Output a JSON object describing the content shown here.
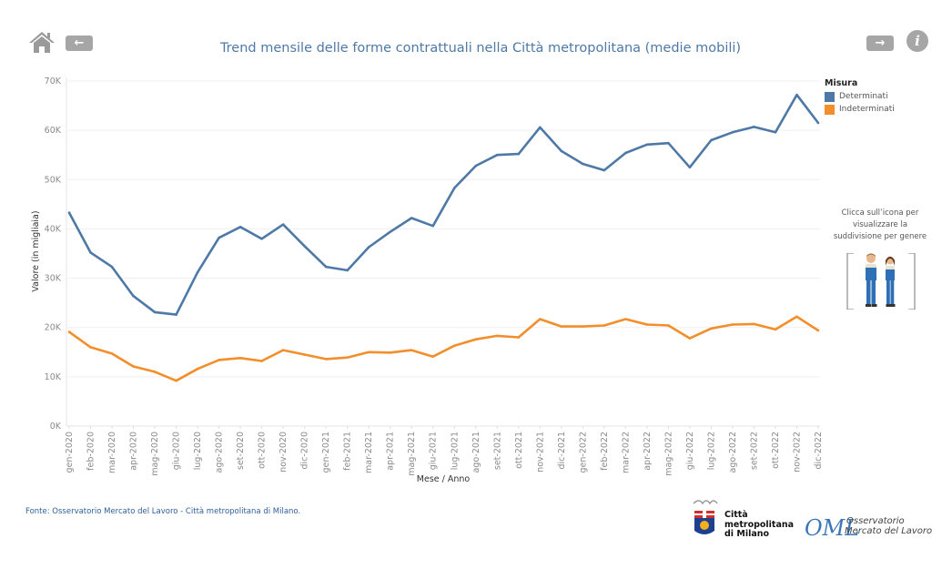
{
  "header": {
    "title": "Trend mensile delle forme contrattuali nella Città metropolitana (medie mobili)",
    "home_icon": "home-icon",
    "back_icon": "arrow-left-icon",
    "back_glyph": "←",
    "forward_icon": "arrow-right-icon",
    "forward_glyph": "→",
    "info_icon": "info-icon",
    "info_glyph": "i"
  },
  "legend": {
    "title": "Misura",
    "items": [
      {
        "label": "Determinati",
        "color": "#4e79a7"
      },
      {
        "label": "Indeterminati",
        "color": "#f28e2b"
      }
    ]
  },
  "side_panel": {
    "note": "Clicca sull’icona per visualizzare la suddivisione per genere",
    "icon": "workers-gender-icon"
  },
  "footer": {
    "source": "Fonte: Osservatorio Mercato del Lavoro - Città metropolitana di Milano.",
    "logo_cm_lines": [
      "Città",
      "metropolitana",
      "di Milano"
    ],
    "logo_oml_lines": [
      "Osservatorio",
      "Mercato del Lavoro"
    ],
    "logo_oml_mark": "OML"
  },
  "chart_data": {
    "type": "line",
    "title": "Trend mensile delle forme contrattuali nella Città metropolitana (medie mobili)",
    "xlabel": "Mese / Anno",
    "ylabel": "Valore (in migliaia)",
    "ylim": [
      0,
      70000
    ],
    "yticks": [
      0,
      10000,
      20000,
      30000,
      40000,
      50000,
      60000,
      70000
    ],
    "ytick_labels": [
      "0K",
      "10K",
      "20K",
      "30K",
      "40K",
      "50K",
      "60K",
      "70K"
    ],
    "grid": true,
    "legend_position": "top-right",
    "categories": [
      "gen-2020",
      "feb-2020",
      "mar-2020",
      "apr-2020",
      "mag-2020",
      "giu-2020",
      "lug-2020",
      "ago-2020",
      "set-2020",
      "ott-2020",
      "nov-2020",
      "dic-2020",
      "gen-2021",
      "feb-2021",
      "mar-2021",
      "apr-2021",
      "mag-2021",
      "giu-2021",
      "lug-2021",
      "ago-2021",
      "set-2021",
      "ott-2021",
      "nov-2021",
      "dic-2021",
      "gen-2022",
      "feb-2022",
      "mar-2022",
      "apr-2022",
      "mag-2022",
      "giu-2022",
      "lug-2022",
      "ago-2022",
      "set-2022",
      "ott-2022",
      "nov-2022",
      "dic-2022"
    ],
    "series": [
      {
        "name": "Determinati",
        "color": "#4e79a7",
        "values": [
          43300,
          35200,
          32300,
          26400,
          23100,
          22600,
          31200,
          38200,
          40400,
          38000,
          40900,
          36500,
          32300,
          31600,
          36300,
          39400,
          42200,
          40600,
          48300,
          52800,
          55000,
          55200,
          60600,
          55800,
          53200,
          51900,
          55400,
          57100,
          57400,
          52500,
          58000,
          59600,
          60700,
          59600,
          67200,
          61500
        ]
      },
      {
        "name": "Indeterminati",
        "color": "#f28e2b",
        "values": [
          19100,
          16000,
          14700,
          12100,
          11000,
          9200,
          11600,
          13400,
          13800,
          13200,
          15400,
          14500,
          13600,
          13900,
          15000,
          14900,
          15400,
          14100,
          16300,
          17600,
          18300,
          18000,
          21700,
          20200,
          20200,
          20400,
          21700,
          20600,
          20400,
          17800,
          19800,
          20600,
          20700,
          19600,
          22200,
          19400
        ]
      }
    ]
  }
}
